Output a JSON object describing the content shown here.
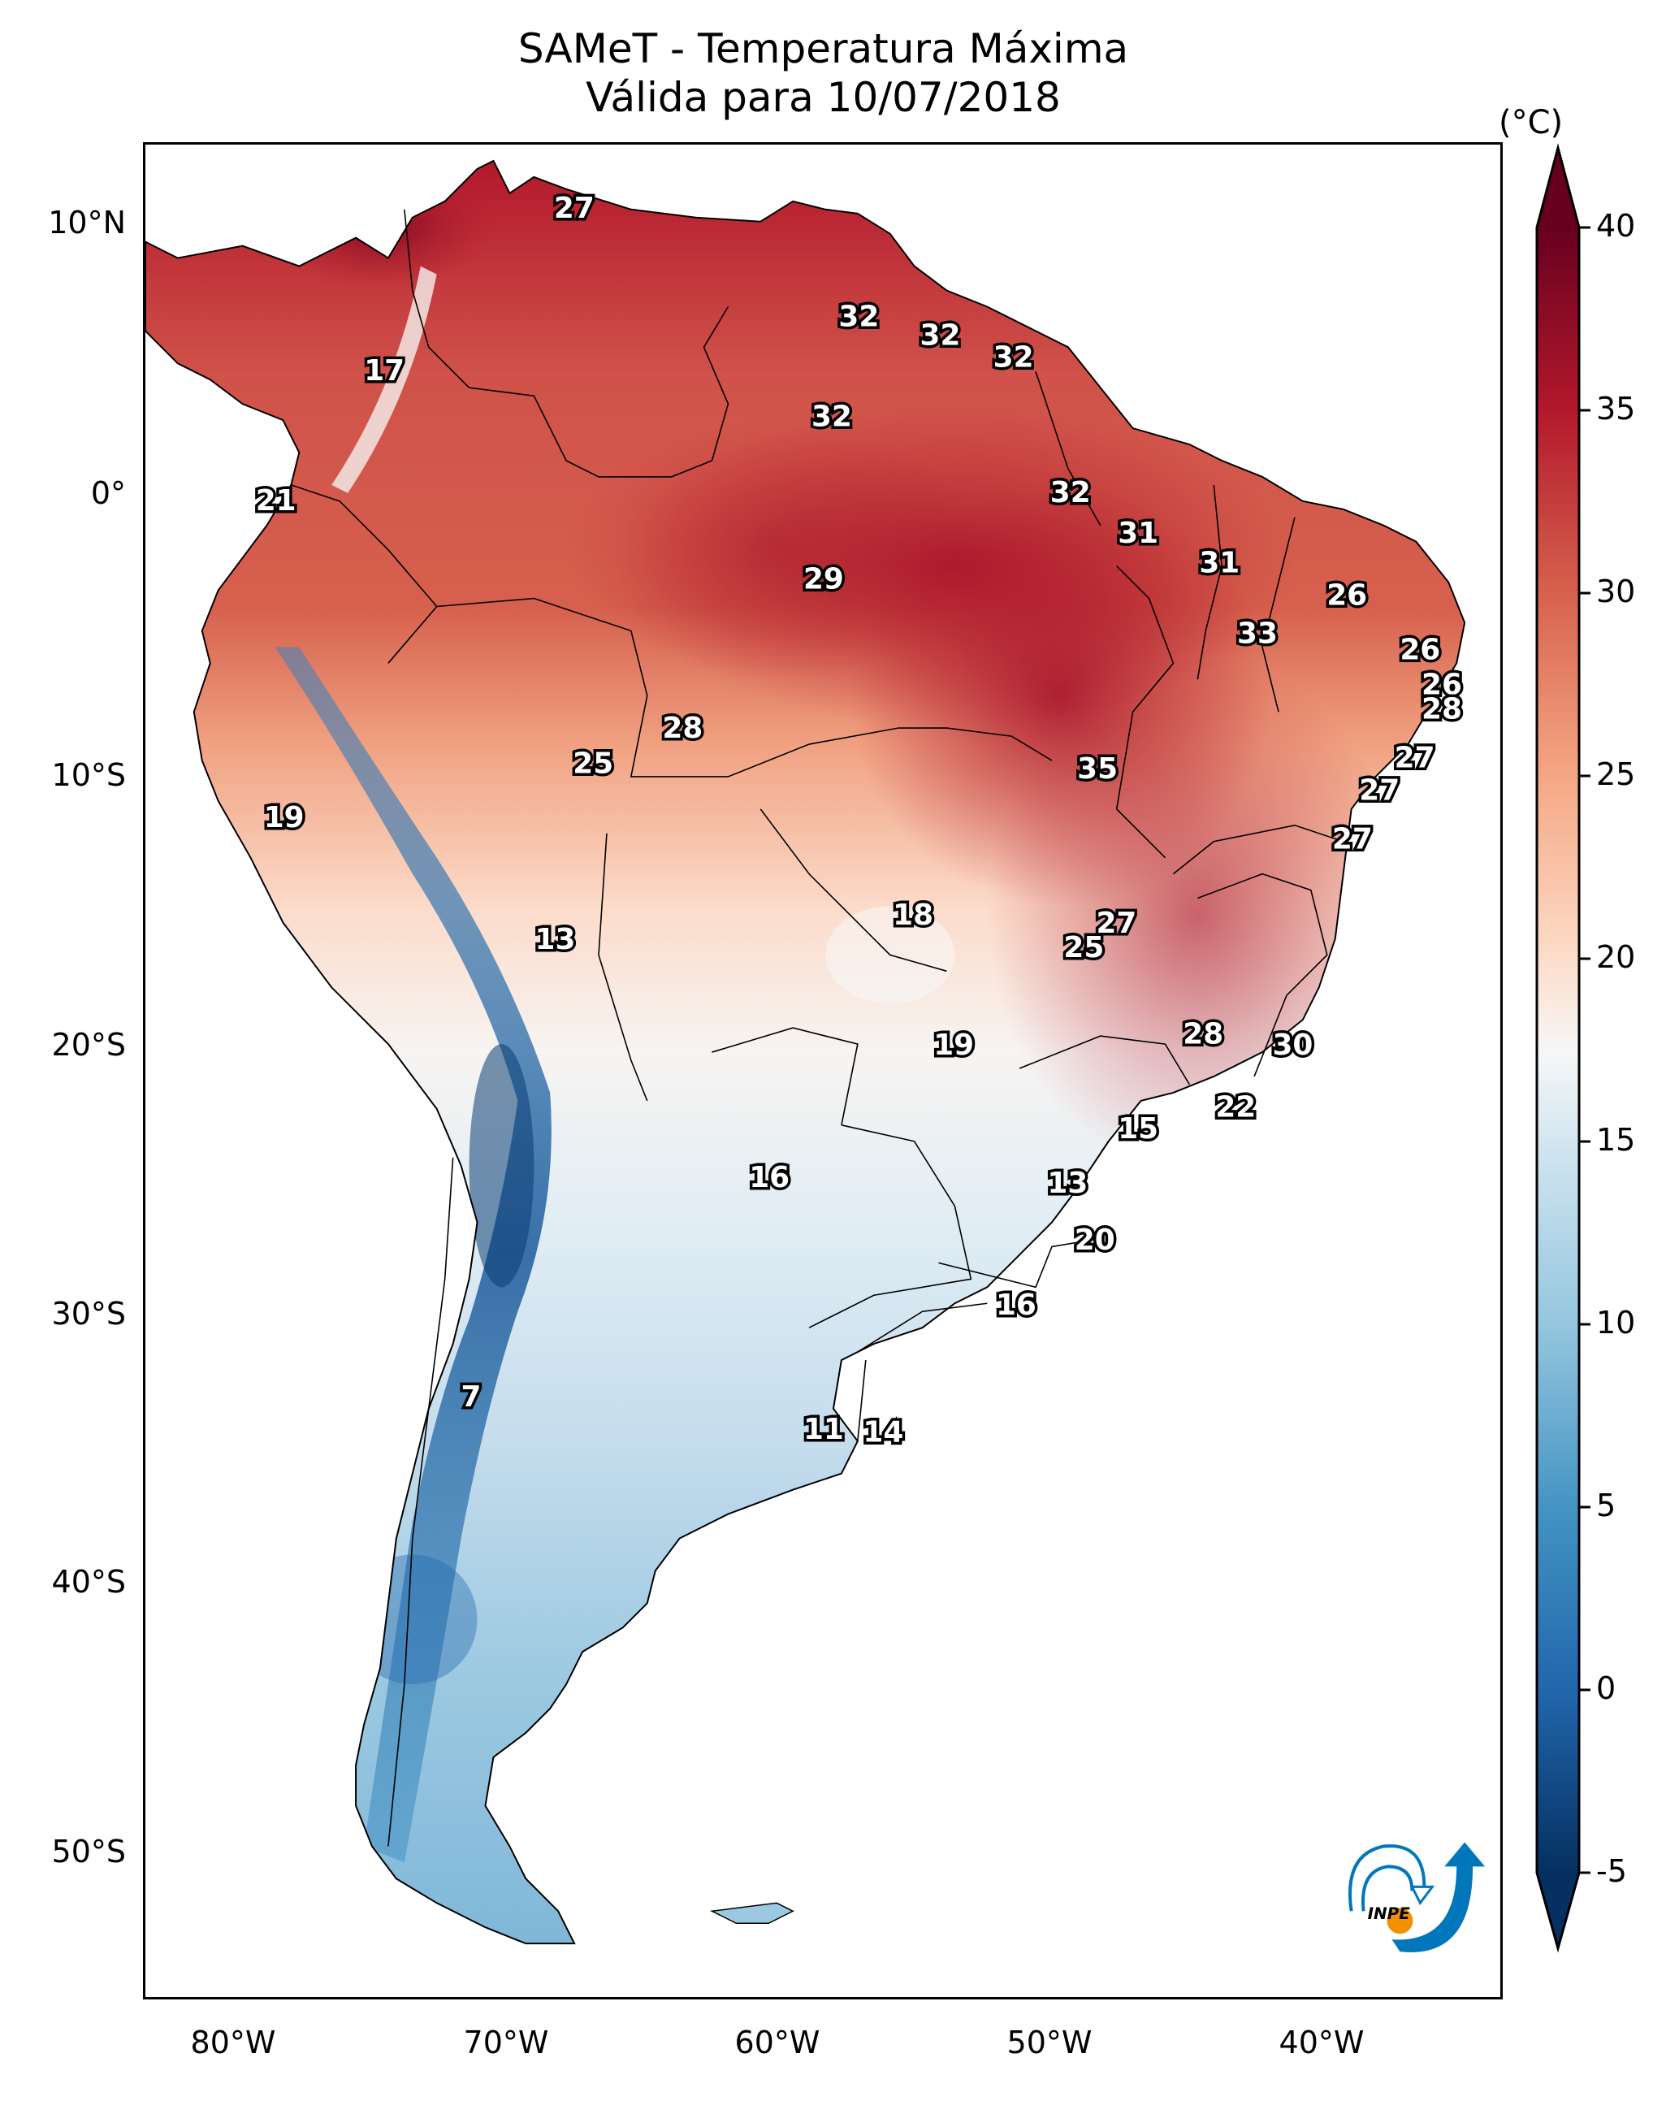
{
  "title": {
    "line1": "SAMeT - Temperatura Máxima",
    "line2": "Válida para 10/07/2018"
  },
  "colorbar": {
    "unit": "(°C)",
    "min": -5,
    "max": 40,
    "extend": "both",
    "ticks": [
      "40",
      "35",
      "30",
      "25",
      "20",
      "15",
      "10",
      "5",
      "0",
      "-5"
    ],
    "colormap": "RdBu_r",
    "colors": {
      "max": "#67001f",
      "hot": "#b2182b",
      "warm": "#d6604d",
      "mild": "#f4a582",
      "neutral_warm": "#fddbc7",
      "neutral": "#f7f7f7",
      "neutral_cool": "#d1e5f0",
      "cool": "#92c5de",
      "cold": "#4393c3",
      "colder": "#2166ac",
      "min": "#053061"
    }
  },
  "axes": {
    "lat_ticks": [
      "10°N",
      "0°",
      "10°S",
      "20°S",
      "30°S",
      "40°S",
      "50°S"
    ],
    "lon_ticks": [
      "80°W",
      "70°W",
      "60°W",
      "50°W",
      "40°W"
    ]
  },
  "chart_data": {
    "type": "heatmap",
    "title": "SAMeT - Temperatura Máxima / Válida para 10/07/2018",
    "variable": "Maximum temperature",
    "units": "°C",
    "date": "10/07/2018",
    "region": "South America",
    "lon_range": [
      -83,
      -33
    ],
    "lat_range": [
      -56,
      13
    ],
    "color_range": [
      -5,
      40
    ],
    "point_labels": [
      {
        "value": 27,
        "lon": -67.5,
        "lat": 10.5
      },
      {
        "value": 17,
        "lon": -74.5,
        "lat": 4.5
      },
      {
        "value": 21,
        "lon": -78.5,
        "lat": -0.3
      },
      {
        "value": 32,
        "lon": -57.0,
        "lat": 6.5
      },
      {
        "value": 32,
        "lon": -54.0,
        "lat": 5.8
      },
      {
        "value": 32,
        "lon": -51.3,
        "lat": 5.0
      },
      {
        "value": 32,
        "lon": -58.0,
        "lat": 2.8
      },
      {
        "value": 32,
        "lon": -49.2,
        "lat": 0.0
      },
      {
        "value": 31,
        "lon": -46.7,
        "lat": -1.5
      },
      {
        "value": 31,
        "lon": -43.7,
        "lat": -2.6
      },
      {
        "value": 29,
        "lon": -58.3,
        "lat": -3.2
      },
      {
        "value": 26,
        "lon": -39.0,
        "lat": -3.8
      },
      {
        "value": 33,
        "lon": -42.3,
        "lat": -5.2
      },
      {
        "value": 26,
        "lon": -36.3,
        "lat": -5.8
      },
      {
        "value": 26,
        "lon": -35.5,
        "lat": -7.1
      },
      {
        "value": 28,
        "lon": -35.5,
        "lat": -8.0
      },
      {
        "value": 27,
        "lon": -36.5,
        "lat": -9.8
      },
      {
        "value": 27,
        "lon": -37.8,
        "lat": -11.0
      },
      {
        "value": 27,
        "lon": -38.8,
        "lat": -12.8
      },
      {
        "value": 28,
        "lon": -63.5,
        "lat": -8.7
      },
      {
        "value": 25,
        "lon": -66.8,
        "lat": -10.0
      },
      {
        "value": 35,
        "lon": -48.2,
        "lat": -10.2
      },
      {
        "value": 19,
        "lon": -78.2,
        "lat": -12.0
      },
      {
        "value": 18,
        "lon": -55.0,
        "lat": -15.6
      },
      {
        "value": 27,
        "lon": -47.5,
        "lat": -15.9
      },
      {
        "value": 25,
        "lon": -48.7,
        "lat": -16.8
      },
      {
        "value": 13,
        "lon": -68.2,
        "lat": -16.5
      },
      {
        "value": 19,
        "lon": -53.5,
        "lat": -20.4
      },
      {
        "value": 28,
        "lon": -44.3,
        "lat": -20.0
      },
      {
        "value": 30,
        "lon": -41.0,
        "lat": -20.4
      },
      {
        "value": 22,
        "lon": -43.1,
        "lat": -22.7
      },
      {
        "value": 15,
        "lon": -46.7,
        "lat": -23.5
      },
      {
        "value": 16,
        "lon": -60.3,
        "lat": -25.3
      },
      {
        "value": 13,
        "lon": -49.3,
        "lat": -25.5
      },
      {
        "value": 20,
        "lon": -48.3,
        "lat": -27.6
      },
      {
        "value": 16,
        "lon": -51.2,
        "lat": -30.0
      },
      {
        "value": 7,
        "lon": -71.3,
        "lat": -33.4
      },
      {
        "value": 11,
        "lon": -58.3,
        "lat": -34.6
      },
      {
        "value": 14,
        "lon": -56.1,
        "lat": -34.7
      }
    ]
  },
  "logo": {
    "text": "INPE",
    "primary_color": "#0077bb",
    "accent_color": "#f39200"
  }
}
